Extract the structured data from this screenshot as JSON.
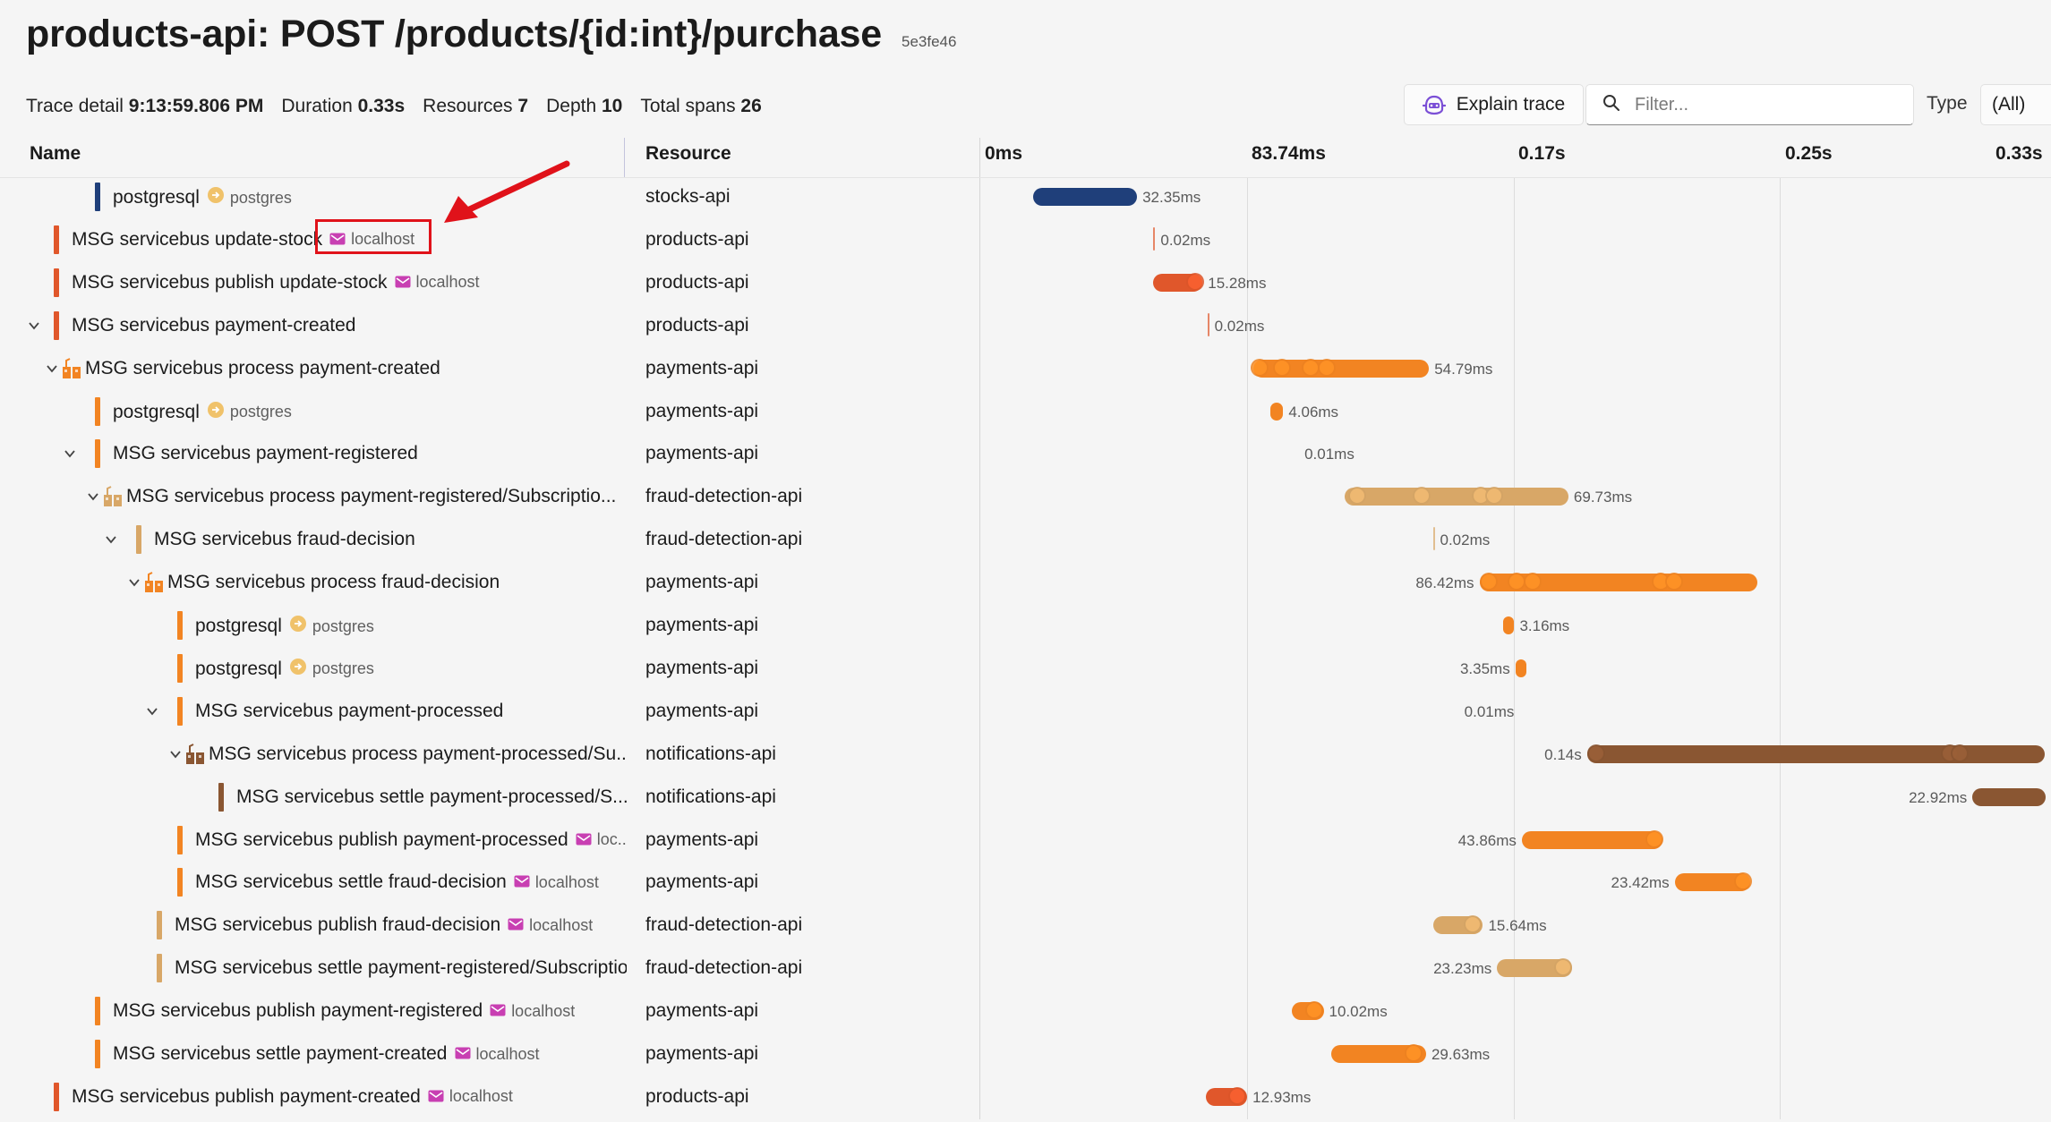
{
  "header": {
    "title": "products-api: POST /products/{id:int}/purchase",
    "trace_id": "5e3fe46"
  },
  "summary": {
    "trace_detail_label": "Trace detail",
    "trace_detail_value": "9:13:59.806 PM",
    "duration_label": "Duration",
    "duration_value": "0.33s",
    "resources_label": "Resources",
    "resources_value": "7",
    "depth_label": "Depth",
    "depth_value": "10",
    "total_spans_label": "Total spans",
    "total_spans_value": "26"
  },
  "toolbar": {
    "explain_label": "Explain trace",
    "filter_placeholder": "Filter...",
    "type_label": "Type",
    "type_value": "(All)"
  },
  "columns": {
    "name": "Name",
    "resource": "Resource"
  },
  "timeline": {
    "ticks": [
      "0ms",
      "83.74ms",
      "0.17s",
      "0.25s",
      "0.33s"
    ]
  },
  "colors": {
    "stocks-api": "#1f3f7a",
    "products-api": "#e0572b",
    "payments-api": "#f28422",
    "fraud-detection-api": "#d8a767",
    "notifications-api": "#8a5632",
    "database_badge": "#f0c26a",
    "messaging_badge": "#c83fb2",
    "highlight": "#e0121a"
  },
  "spans": [
    {
      "name": "postgresql",
      "peer": "postgres",
      "peer_kind": "db",
      "resource": "stocks-api",
      "color": "#1f3f7a",
      "depth": 3,
      "chevron": false,
      "process": false,
      "start": 0.015,
      "dur": 0.0324,
      "dur_label": "32.35ms",
      "label_side": "right",
      "dots": []
    },
    {
      "name": "MSG servicebus update-stock",
      "peer": "localhost",
      "peer_kind": "msg",
      "resource": "products-api",
      "color": "#e0572b",
      "depth": 1,
      "chevron": false,
      "process": false,
      "start": 0.0525,
      "dur": 0.0002,
      "dur_label": "0.02ms",
      "label_side": "right",
      "dots": []
    },
    {
      "name": "MSG servicebus publish update-stock",
      "peer": "localhost",
      "peer_kind": "msg",
      "resource": "products-api",
      "color": "#e0572b",
      "depth": 1,
      "chevron": false,
      "process": false,
      "start": 0.0525,
      "dur": 0.0153,
      "dur_label": "15.28ms",
      "label_side": "right",
      "dots": [
        0.0655
      ]
    },
    {
      "name": "MSG servicebus payment-created",
      "peer": "",
      "peer_kind": "",
      "resource": "products-api",
      "color": "#e0572b",
      "depth": 1,
      "chevron": true,
      "process": false,
      "start": 0.0693,
      "dur": 0.0002,
      "dur_label": "0.02ms",
      "label_side": "right",
      "dots": []
    },
    {
      "name": "MSG servicebus process payment-created",
      "peer": "",
      "peer_kind": "",
      "resource": "payments-api",
      "color": "#f28422",
      "depth": 2,
      "chevron": true,
      "process": true,
      "start": 0.0835,
      "dur": 0.0548,
      "dur_label": "54.79ms",
      "label_side": "right",
      "dots": [
        0.0855,
        0.0925,
        0.1015,
        0.1065
      ]
    },
    {
      "name": "postgresql",
      "peer": "postgres",
      "peer_kind": "db",
      "resource": "payments-api",
      "color": "#f28422",
      "depth": 3,
      "chevron": false,
      "process": false,
      "start": 0.0888,
      "dur": 0.0041,
      "dur_label": "4.06ms",
      "label_side": "right",
      "dots": []
    },
    {
      "name": "MSG servicebus payment-registered",
      "peer": "",
      "peer_kind": "",
      "resource": "payments-api",
      "color": "#f28422",
      "depth": 3,
      "chevron": true,
      "process": false,
      "start": 0.0973,
      "dur": 0.0001,
      "dur_label": "0.01ms",
      "label_side": "right",
      "dots": []
    },
    {
      "name": "MSG servicebus process payment-registered/Subscriptio...",
      "peer": "",
      "peer_kind": "",
      "resource": "fraud-detection-api",
      "color": "#d8a767",
      "depth": 4,
      "chevron": true,
      "process": true,
      "start": 0.112,
      "dur": 0.0697,
      "dur_label": "69.73ms",
      "label_side": "right",
      "dots": [
        0.116,
        0.136,
        0.1545,
        0.1585
      ]
    },
    {
      "name": "MSG servicebus fraud-decision",
      "peer": "",
      "peer_kind": "",
      "resource": "fraud-detection-api",
      "color": "#d8a767",
      "depth": 5,
      "chevron": true,
      "process": false,
      "start": 0.1395,
      "dur": 0.0002,
      "dur_label": "0.02ms",
      "label_side": "right",
      "dots": []
    },
    {
      "name": "MSG servicebus process fraud-decision",
      "peer": "",
      "peer_kind": "",
      "resource": "payments-api",
      "color": "#f28422",
      "depth": 6,
      "chevron": true,
      "process": true,
      "start": 0.154,
      "dur": 0.0864,
      "dur_label": "86.42ms",
      "label_side": "left",
      "dots": [
        0.157,
        0.1655,
        0.1705,
        0.2105,
        0.2145
      ]
    },
    {
      "name": "postgresql",
      "peer": "postgres",
      "peer_kind": "db",
      "resource": "payments-api",
      "color": "#f28422",
      "depth": 7,
      "chevron": false,
      "process": false,
      "start": 0.1615,
      "dur": 0.0032,
      "dur_label": "3.16ms",
      "label_side": "right",
      "dots": []
    },
    {
      "name": "postgresql",
      "peer": "postgres",
      "peer_kind": "db",
      "resource": "payments-api",
      "color": "#f28422",
      "depth": 7,
      "chevron": false,
      "process": false,
      "start": 0.1652,
      "dur": 0.0034,
      "dur_label": "3.35ms",
      "label_side": "left",
      "dots": []
    },
    {
      "name": "MSG servicebus payment-processed",
      "peer": "",
      "peer_kind": "",
      "resource": "payments-api",
      "color": "#f28422",
      "depth": 7,
      "chevron": true,
      "process": false,
      "start": 0.1665,
      "dur": 0.0001,
      "dur_label": "0.01ms",
      "label_side": "left",
      "dots": []
    },
    {
      "name": "MSG servicebus process payment-processed/Su...",
      "peer": "",
      "peer_kind": "",
      "resource": "notifications-api",
      "color": "#8a5632",
      "depth": 8,
      "chevron": true,
      "process": true,
      "start": 0.1875,
      "dur": 0.1425,
      "dur_label": "0.14s",
      "label_side": "left",
      "dots": [
        0.1905,
        0.3005,
        0.3035
      ]
    },
    {
      "name": "MSG servicebus settle payment-processed/S...",
      "peer": "",
      "peer_kind": "",
      "resource": "notifications-api",
      "color": "#8a5632",
      "depth": 9,
      "chevron": false,
      "process": false,
      "start": 0.3075,
      "dur": 0.0229,
      "dur_label": "22.92ms",
      "label_side": "left",
      "dots": []
    },
    {
      "name": "MSG servicebus publish payment-processed",
      "peer": "loc...",
      "peer_kind": "msg",
      "resource": "payments-api",
      "color": "#f28422",
      "depth": 7,
      "chevron": false,
      "process": false,
      "start": 0.1672,
      "dur": 0.0439,
      "dur_label": "43.86ms",
      "label_side": "left",
      "dots": [
        0.2085
      ]
    },
    {
      "name": "MSG servicebus settle fraud-decision",
      "peer": "localhost",
      "peer_kind": "msg",
      "resource": "payments-api",
      "color": "#f28422",
      "depth": 7,
      "chevron": false,
      "process": false,
      "start": 0.2148,
      "dur": 0.0234,
      "dur_label": "23.42ms",
      "label_side": "left",
      "dots": [
        0.236
      ]
    },
    {
      "name": "MSG servicebus publish fraud-decision",
      "peer": "localhost",
      "peer_kind": "msg",
      "resource": "fraud-detection-api",
      "color": "#d8a767",
      "depth": 6,
      "chevron": false,
      "process": false,
      "start": 0.1395,
      "dur": 0.0156,
      "dur_label": "15.64ms",
      "label_side": "right",
      "dots": [
        0.152
      ]
    },
    {
      "name": "MSG servicebus settle payment-registered/Subscriptio...",
      "peer": "",
      "peer_kind": "",
      "resource": "fraud-detection-api",
      "color": "#d8a767",
      "depth": 6,
      "chevron": false,
      "process": false,
      "start": 0.1595,
      "dur": 0.0232,
      "dur_label": "23.23ms",
      "label_side": "left",
      "dots": [
        0.18
      ]
    },
    {
      "name": "MSG servicebus publish payment-registered",
      "peer": "localhost",
      "peer_kind": "msg",
      "resource": "payments-api",
      "color": "#f28422",
      "depth": 3,
      "chevron": false,
      "process": false,
      "start": 0.0955,
      "dur": 0.01,
      "dur_label": "10.02ms",
      "label_side": "right",
      "dots": [
        0.1025
      ]
    },
    {
      "name": "MSG servicebus settle payment-created",
      "peer": "localhost",
      "peer_kind": "msg",
      "resource": "payments-api",
      "color": "#f28422",
      "depth": 3,
      "chevron": false,
      "process": false,
      "start": 0.1078,
      "dur": 0.0296,
      "dur_label": "29.63ms",
      "label_side": "right",
      "dots": [
        0.1335
      ]
    },
    {
      "name": "MSG servicebus publish payment-created",
      "peer": "localhost",
      "peer_kind": "msg",
      "resource": "products-api",
      "color": "#e0572b",
      "depth": 1,
      "chevron": false,
      "process": false,
      "start": 0.0688,
      "dur": 0.0129,
      "dur_label": "12.93ms",
      "label_side": "right",
      "dots": [
        0.0785
      ]
    }
  ]
}
